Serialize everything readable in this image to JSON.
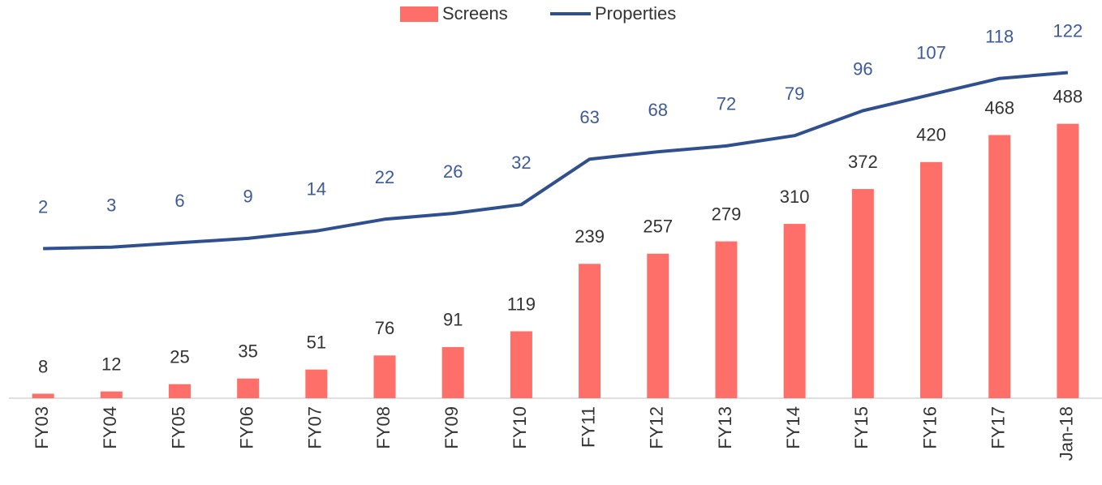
{
  "chart_data": {
    "type": "bar-line",
    "categories": [
      "FY03",
      "FY04",
      "FY05",
      "FY06",
      "FY07",
      "FY08",
      "FY09",
      "FY10",
      "FY11",
      "FY12",
      "FY13",
      "FY14",
      "FY15",
      "FY16",
      "FY17",
      "Jan-18"
    ],
    "series": [
      {
        "name": "Screens",
        "type": "bar",
        "color": "#ff6f69",
        "values": [
          8,
          12,
          25,
          35,
          51,
          76,
          91,
          119,
          239,
          257,
          279,
          310,
          372,
          420,
          468,
          488
        ]
      },
      {
        "name": "Properties",
        "type": "line",
        "axis": "y2",
        "color": "#2f4f8f",
        "values": [
          2,
          3,
          6,
          9,
          14,
          22,
          26,
          32,
          63,
          68,
          72,
          79,
          96,
          107,
          118,
          122
        ]
      }
    ],
    "ylim": [
      0,
      600
    ],
    "y2lim": [
      -100,
      130
    ],
    "legend": "top"
  }
}
